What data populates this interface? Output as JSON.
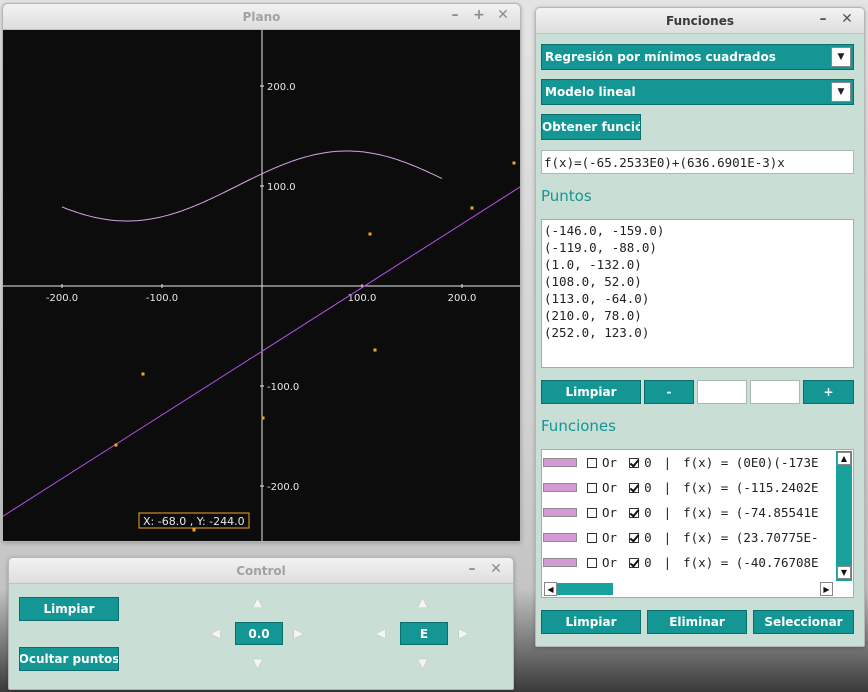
{
  "plano": {
    "title": "Plano",
    "axes": {
      "x_ticks": [
        "-200.0",
        "-100.0",
        "100.0",
        "200.0"
      ],
      "y_ticks": [
        "200.0",
        "100.0",
        "-100.0",
        "-200.0"
      ]
    },
    "points": [
      {
        "x": -146,
        "y": -159
      },
      {
        "x": -119,
        "y": -88
      },
      {
        "x": 1,
        "y": -132
      },
      {
        "x": 108,
        "y": 52
      },
      {
        "x": 113,
        "y": -64
      },
      {
        "x": 210,
        "y": 78
      },
      {
        "x": 252,
        "y": 123
      },
      {
        "x": -68,
        "y": -244
      }
    ],
    "regression": {
      "intercept": -65.2533,
      "slope": 0.6366901
    },
    "curve_range": [
      -200,
      180
    ],
    "cursor_readout": "X: -68.0 , Y: -244.0",
    "colors": {
      "background": "#0c0c0c",
      "axes": "#e8e8e8",
      "points": "#f5a81c",
      "regression": "#b44fe6",
      "curve": "#d7a4e6"
    }
  },
  "control": {
    "title": "Control",
    "clear_label": "Limpiar",
    "hide_points_label": "Ocultar puntos",
    "zoom_value": "0.0",
    "unit_value": "E"
  },
  "funciones": {
    "title": "Funciones",
    "method_select": "Regresión por mínimos cuadrados",
    "model_select": "Modelo lineal",
    "get_function_label": "Obtener función",
    "function_output": "f(x)=(-65.2533E0)+(636.6901E-3)x",
    "points_heading": "Puntos",
    "points_list": [
      "(-146.0, -159.0)",
      "(-119.0, -88.0)",
      "(1.0, -132.0)",
      "(108.0, 52.0)",
      "(113.0, -64.0)",
      "(210.0, 78.0)",
      "(252.0, 123.0)"
    ],
    "points_clear_label": "Limpiar",
    "minus_label": "-",
    "plus_label": "+",
    "x_input": "",
    "y_input": "",
    "functions_heading": "Funciones",
    "functions_rows": [
      {
        "or_label": "Or",
        "o_label": "0",
        "sep": "|",
        "text": "f(x) = (0E0)(-173E"
      },
      {
        "or_label": "Or",
        "o_label": "0",
        "sep": "|",
        "text": "f(x) = (-115.2402E"
      },
      {
        "or_label": "Or",
        "o_label": "0",
        "sep": "|",
        "text": "f(x) = (-74.85541E"
      },
      {
        "or_label": "Or",
        "o_label": "0",
        "sep": "|",
        "text": "f(x) = (23.70775E-"
      },
      {
        "or_label": "Or",
        "o_label": "0",
        "sep": "|",
        "text": "f(x) = (-40.76708E"
      }
    ],
    "clear_label": "Limpiar",
    "delete_label": "Eliminar",
    "select_label": "Seleccionar",
    "colors": {
      "accent": "#149694",
      "panel": "#c9ded5"
    }
  }
}
